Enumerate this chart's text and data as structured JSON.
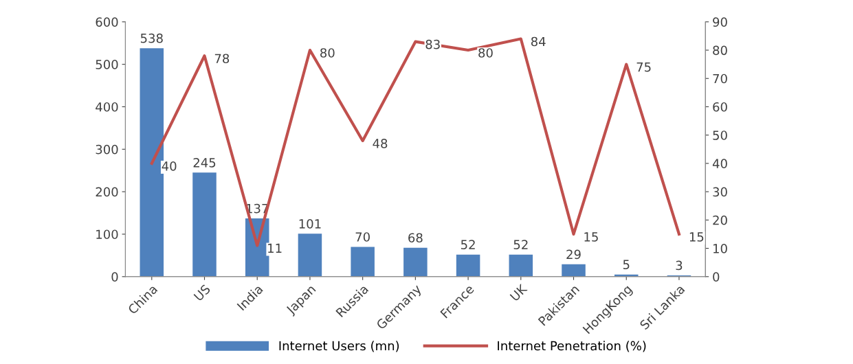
{
  "chart_data": {
    "type": "bar",
    "categories": [
      "China",
      "US",
      "India",
      "Japan",
      "Russia",
      "Germany",
      "France",
      "UK",
      "Pakistan",
      "HongKong",
      "Sri Lanka"
    ],
    "series": [
      {
        "name": "Internet Users (mn)",
        "color": "#4f81bd",
        "values": [
          538,
          245,
          137,
          101,
          70,
          68,
          52,
          52,
          29,
          5,
          3
        ]
      },
      {
        "name": "Internet Penetration (%)",
        "type": "line",
        "axis": "y2",
        "color": "#c0504d",
        "values": [
          40,
          78,
          11,
          80,
          48,
          83,
          80,
          84,
          15,
          75,
          15
        ]
      }
    ],
    "ylim": [
      0,
      600
    ],
    "yticks": [
      0,
      100,
      200,
      300,
      400,
      500,
      600
    ],
    "y2lim": [
      0,
      90
    ],
    "y2ticks": [
      0,
      10,
      20,
      30,
      40,
      50,
      60,
      70,
      80,
      90
    ],
    "data_labels": true,
    "grid": false,
    "legend": "bottom",
    "marker": "none",
    "line_style": "solid"
  }
}
